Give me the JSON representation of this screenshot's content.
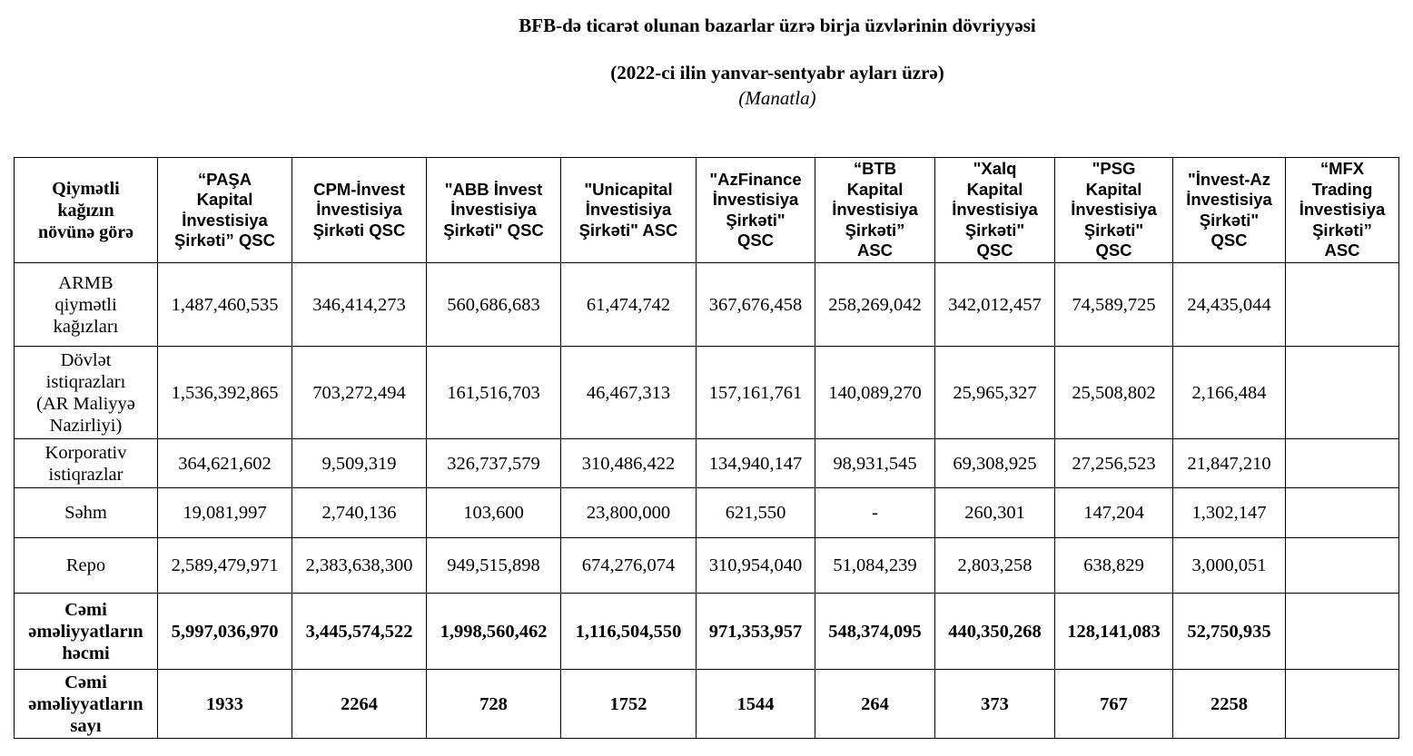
{
  "document": {
    "title": "BFB-də ticarət olunan bazarlar üzrə birja üzvlərinin dövriyyəsi",
    "period": "(2022-ci ilin yanvar-sentyabr ayları üzrə)",
    "unit": "(Manatla)"
  },
  "table": {
    "corner_header": "Qiymətli\nkağızın\nnövünə görə",
    "columns": [
      "“PAŞA\nKapital\nİnvestisiya\nŞirkəti” QSC",
      "CPM-İnvest\nİnvestisiya\nŞirkəti QSC",
      "\"ABB İnvest\nİnvestisiya\nŞirkəti\" QSC",
      "\"Unicapital\nİnvestisiya\nŞirkəti\" ASC",
      "\"AzFinance\nİnvestisiya\nŞirkəti\"\nQSC",
      "“BTB\nKapital\nİnvestisiya\nŞirkəti”\nASC",
      "\"Xalq\nKapital\nİnvestisiya\nŞirkəti\"\nQSC",
      "\"PSG\nKapital\nİnvestisiya\nŞirkəti\"\nQSC",
      "\"İnvest-Az\nİnvestisiya\nŞirkəti\"\nQSC",
      "“MFX\nTrading\nİnvestisiya\nŞirkəti”\nASC"
    ],
    "rows": [
      {
        "label": "ARMB\nqiymətli\nkağızları",
        "values": [
          "1,487,460,535",
          "346,414,273",
          "560,686,683",
          "61,474,742",
          "367,676,458",
          "258,269,042",
          "342,012,457",
          "74,589,725",
          "24,435,044",
          ""
        ]
      },
      {
        "label": "Dövlət\nistiqrazları\n(AR Maliyyə\nNazirliyi)",
        "values": [
          "1,536,392,865",
          "703,272,494",
          "161,516,703",
          "46,467,313",
          "157,161,761",
          "140,089,270",
          "25,965,327",
          "25,508,802",
          "2,166,484",
          ""
        ]
      },
      {
        "label": "Korporativ\nistiqrazlar",
        "values": [
          "364,621,602",
          "9,509,319",
          "326,737,579",
          "310,486,422",
          "134,940,147",
          "98,931,545",
          "69,308,925",
          "27,256,523",
          "21,847,210",
          ""
        ]
      },
      {
        "label": "Səhm",
        "values": [
          "19,081,997",
          "2,740,136",
          "103,600",
          "23,800,000",
          "621,550",
          "-",
          "260,301",
          "147,204",
          "1,302,147",
          ""
        ]
      },
      {
        "label": "Repo",
        "values": [
          "2,589,479,971",
          "2,383,638,300",
          "949,515,898",
          "674,276,074",
          "310,954,040",
          "51,084,239",
          "2,803,258",
          "638,829",
          "3,000,051",
          ""
        ]
      },
      {
        "label": "Cəmi\nəməliyyatların\nhəcmi",
        "bold": true,
        "values": [
          "5,997,036,970",
          "3,445,574,522",
          "1,998,560,462",
          "1,116,504,550",
          "971,353,957",
          "548,374,095",
          "440,350,268",
          "128,141,083",
          "52,750,935",
          ""
        ]
      },
      {
        "label": "Cəmi\nəməliyyatların\nsayı",
        "bold": true,
        "values": [
          "1933",
          "2264",
          "728",
          "1752",
          "1544",
          "264",
          "373",
          "767",
          "2258",
          ""
        ]
      }
    ]
  }
}
